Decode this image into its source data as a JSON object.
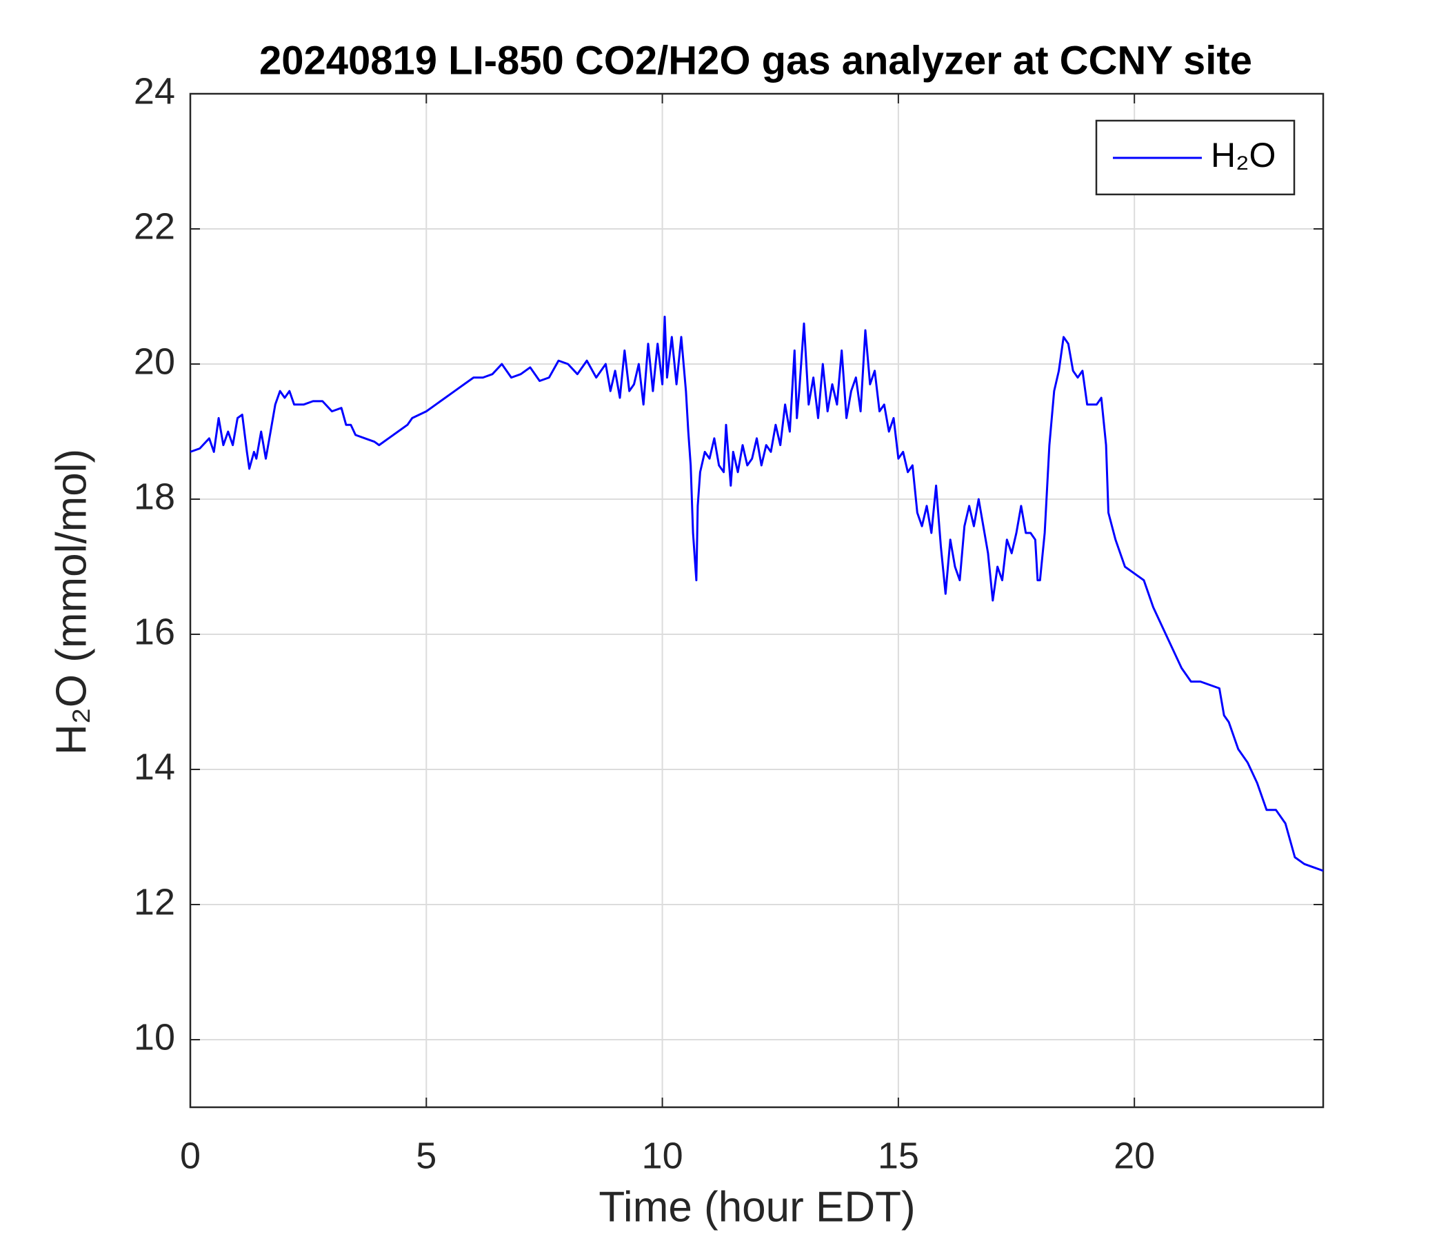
{
  "chart_data": {
    "type": "line",
    "title": "20240819 LI-850 CO2/H2O gas analyzer at CCNY site",
    "xlabel": "Time (hour EDT)",
    "ylabel": "H₂O (mmol/mol)",
    "xlim": [
      0,
      24
    ],
    "ylim": [
      9,
      24
    ],
    "xticks": [
      0,
      5,
      10,
      15,
      20
    ],
    "yticks": [
      10,
      12,
      14,
      16,
      18,
      20,
      22,
      24
    ],
    "grid": true,
    "legend": "upper right",
    "x": [
      0,
      0.2,
      0.4,
      0.5,
      0.6,
      0.7,
      0.8,
      0.9,
      1.0,
      1.1,
      1.2,
      1.25,
      1.35,
      1.4,
      1.5,
      1.6,
      1.7,
      1.8,
      1.9,
      2.0,
      2.1,
      2.2,
      2.4,
      2.6,
      2.8,
      3.0,
      3.2,
      3.3,
      3.4,
      3.5,
      3.7,
      3.9,
      4.0,
      4.2,
      4.4,
      4.6,
      4.7,
      5.0,
      5.2,
      5.4,
      5.6,
      5.8,
      6.0,
      6.2,
      6.4,
      6.6,
      6.8,
      7.0,
      7.2,
      7.4,
      7.6,
      7.8,
      8.0,
      8.2,
      8.4,
      8.6,
      8.8,
      8.9,
      9.0,
      9.1,
      9.2,
      9.3,
      9.4,
      9.5,
      9.6,
      9.7,
      9.8,
      9.9,
      10.0,
      10.05,
      10.1,
      10.2,
      10.3,
      10.4,
      10.5,
      10.55,
      10.6,
      10.65,
      10.7,
      10.72,
      10.75,
      10.8,
      10.9,
      11.0,
      11.1,
      11.2,
      11.3,
      11.35,
      11.45,
      11.5,
      11.6,
      11.7,
      11.8,
      11.9,
      12.0,
      12.1,
      12.2,
      12.3,
      12.4,
      12.5,
      12.6,
      12.7,
      12.8,
      12.85,
      12.9,
      13.0,
      13.1,
      13.2,
      13.3,
      13.4,
      13.5,
      13.6,
      13.7,
      13.8,
      13.9,
      14.0,
      14.1,
      14.2,
      14.3,
      14.4,
      14.5,
      14.6,
      14.7,
      14.8,
      14.9,
      15.0,
      15.1,
      15.2,
      15.3,
      15.4,
      15.5,
      15.6,
      15.7,
      15.8,
      15.9,
      16.0,
      16.1,
      16.2,
      16.3,
      16.4,
      16.5,
      16.6,
      16.7,
      16.8,
      16.9,
      17.0,
      17.1,
      17.2,
      17.3,
      17.4,
      17.5,
      17.6,
      17.7,
      17.8,
      17.9,
      17.95,
      18.0,
      18.1,
      18.2,
      18.3,
      18.4,
      18.5,
      18.6,
      18.7,
      18.8,
      18.9,
      19.0,
      19.1,
      19.2,
      19.3,
      19.4,
      19.45,
      19.6,
      19.8,
      20.0,
      20.2,
      20.4,
      20.6,
      20.8,
      21.0,
      21.2,
      21.4,
      21.6,
      21.8,
      21.9,
      22.0,
      22.2,
      22.4,
      22.6,
      22.8,
      23.0,
      23.2,
      23.4,
      23.6,
      24.0
    ],
    "series": [
      {
        "name": "H₂O",
        "color": "#0000ff",
        "values": [
          18.7,
          18.75,
          18.9,
          18.7,
          19.2,
          18.8,
          19.0,
          18.8,
          19.2,
          19.25,
          18.7,
          18.45,
          18.7,
          18.6,
          19.0,
          18.6,
          19.0,
          19.4,
          19.6,
          19.5,
          19.6,
          19.4,
          19.4,
          19.45,
          19.45,
          19.3,
          19.35,
          19.1,
          19.1,
          18.95,
          18.9,
          18.85,
          18.8,
          18.9,
          19.0,
          19.1,
          19.2,
          19.3,
          19.4,
          19.5,
          19.6,
          19.7,
          19.8,
          19.8,
          19.85,
          20.0,
          19.8,
          19.85,
          19.95,
          19.75,
          19.8,
          20.05,
          20.0,
          19.85,
          20.05,
          19.8,
          20.0,
          19.6,
          19.9,
          19.5,
          20.2,
          19.6,
          19.7,
          20.0,
          19.4,
          20.3,
          19.6,
          20.3,
          19.7,
          20.7,
          19.8,
          20.4,
          19.7,
          20.4,
          19.6,
          19.0,
          18.5,
          17.5,
          17.0,
          16.8,
          17.9,
          18.4,
          18.7,
          18.6,
          18.9,
          18.5,
          18.4,
          19.1,
          18.2,
          18.7,
          18.4,
          18.8,
          18.5,
          18.6,
          18.9,
          18.5,
          18.8,
          18.7,
          19.1,
          18.8,
          19.4,
          19.0,
          20.2,
          19.2,
          19.6,
          20.6,
          19.4,
          19.8,
          19.2,
          20.0,
          19.3,
          19.7,
          19.4,
          20.2,
          19.2,
          19.6,
          19.8,
          19.3,
          20.5,
          19.7,
          19.9,
          19.3,
          19.4,
          19.0,
          19.2,
          18.6,
          18.7,
          18.4,
          18.5,
          17.8,
          17.6,
          17.9,
          17.5,
          18.2,
          17.3,
          16.6,
          17.4,
          17.0,
          16.8,
          17.6,
          17.9,
          17.6,
          18.0,
          17.6,
          17.2,
          16.5,
          17.0,
          16.8,
          17.4,
          17.2,
          17.5,
          17.9,
          17.5,
          17.5,
          17.4,
          16.8,
          16.8,
          17.5,
          18.8,
          19.6,
          19.9,
          20.4,
          20.3,
          19.9,
          19.8,
          19.9,
          19.4,
          19.4,
          19.4,
          19.5,
          18.8,
          17.8,
          17.4,
          17.0,
          16.9,
          16.8,
          16.4,
          16.1,
          15.8,
          15.5,
          15.3,
          15.3,
          15.25,
          15.2,
          14.8,
          14.7,
          14.3,
          14.1,
          13.8,
          13.4,
          13.4,
          13.2,
          12.7,
          12.6,
          12.5
        ]
      }
    ]
  }
}
